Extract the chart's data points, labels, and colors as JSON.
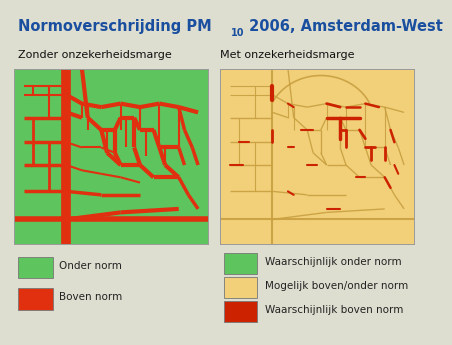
{
  "title_part1": "Normoverschrijding PM",
  "title_sub": "10",
  "title_part2": " 2006, Amsterdam-West",
  "subtitle_left": "Zonder onzekerheidsmarge",
  "subtitle_right": "Met onzekerheidsmarge",
  "bg_color": "#deded0",
  "map_left_bg": "#5ec45e",
  "map_right_bg": "#f2d07a",
  "red_color": "#e03010",
  "road_left_color": "#e03010",
  "road_right_outline": "#c8a040",
  "road_right_red": "#cc2200",
  "title_color": "#1a4fa0",
  "subtitle_color": "#111111",
  "text_color": "#222222",
  "title_fontsize": 10.5,
  "subtitle_fontsize": 8,
  "legend_fontsize": 7.5,
  "legend_left": [
    {
      "color": "#5ec45e",
      "label": "Onder norm"
    },
    {
      "color": "#e03010",
      "label": "Boven norm"
    }
  ],
  "legend_right": [
    {
      "color": "#5ec45e",
      "label": "Waarschijnlijk onder norm"
    },
    {
      "color": "#f2d07a",
      "label": "Mogelijk boven/onder norm"
    },
    {
      "color": "#cc2200",
      "label": "Waarschijnlijk boven norm"
    }
  ]
}
